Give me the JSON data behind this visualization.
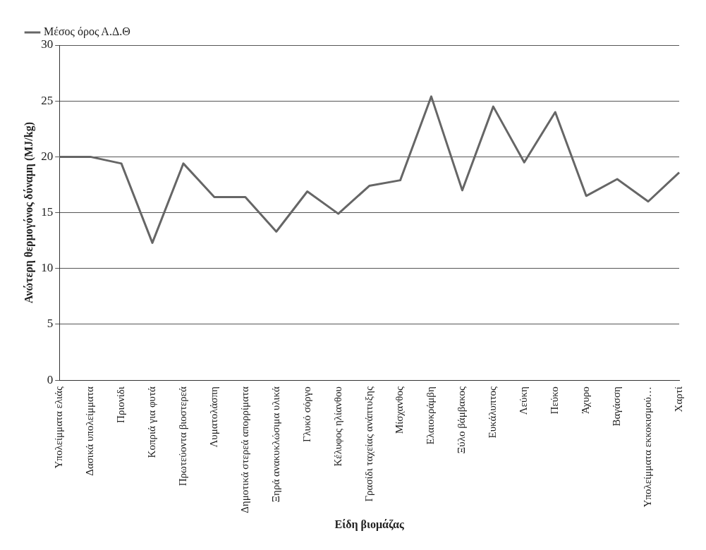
{
  "chart_data": {
    "type": "line",
    "xlabel": "Είδη βιομάζας",
    "ylabel": "Ανώτερη θερμογόνος δύναμη (MJ/kg)",
    "categories": [
      "Υπολείμματα ελιάς",
      "Δασικά υπολείμματα",
      "Πριονίδι",
      "Κοπριά για φυτά",
      "Πρωτεύοντα βιοστερεά",
      "Λυματολάσπη",
      "Δημοτικά στερεά απορρίματα",
      "Ξηρά ανακυκλώσιμα υλικά",
      "Γλυκό σόργο",
      "Κέλυφος ηλίανθου",
      "Γρασίδι ταχείας ανάπτυξης",
      "Μίσχανθος",
      "Ελαιοκράμβη",
      "Ξύλο βάμβακος",
      "Ευκάλυπτος",
      "Λεύκη",
      "Πεύκο",
      "Άχυρο",
      "Βαγάσση",
      "Υπολείμματα εκκοκισμού…",
      "Χαρτί"
    ],
    "series": [
      {
        "name": "Μέσος όρος Α.Δ.Θ",
        "color": "#666666",
        "values": [
          20,
          20,
          19.4,
          12.3,
          19.4,
          16.4,
          16.4,
          13.3,
          16.9,
          14.9,
          17.4,
          17.9,
          25.4,
          17.0,
          24.5,
          19.5,
          24.0,
          16.5,
          18.0,
          16.0,
          18.6
        ]
      }
    ],
    "ylim": [
      0,
      30
    ],
    "yticks": [
      0,
      5,
      10,
      15,
      20,
      25,
      30
    ],
    "grid": "y",
    "legend": "top left",
    "marker": "none",
    "line_style": "solid"
  }
}
